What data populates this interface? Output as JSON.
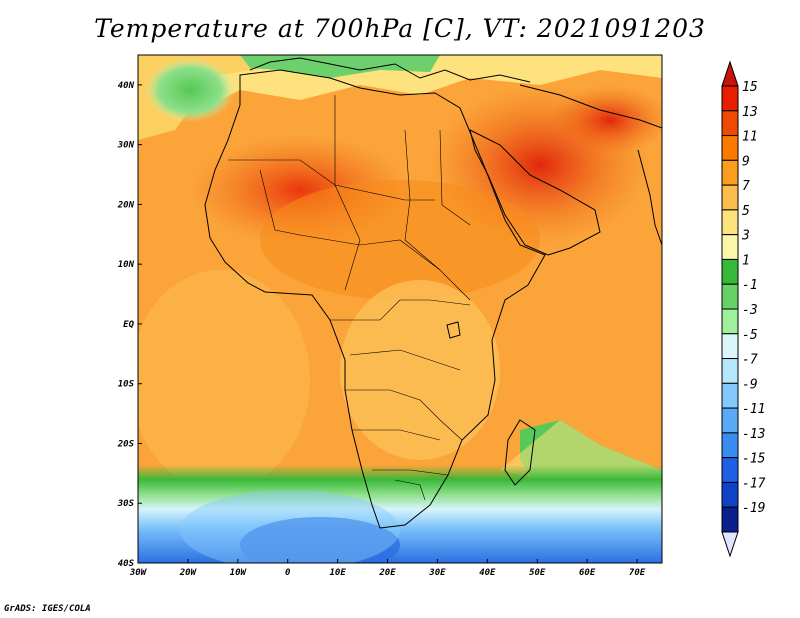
{
  "title": "Temperature at 700hPa [C], VT: 2021091203",
  "credit": "GrADS: IGES/COLA",
  "map": {
    "lon_range": [
      -30,
      75
    ],
    "lat_range": [
      -40,
      45
    ],
    "lon_ticks": [
      "30W",
      "20W",
      "10W",
      "0",
      "10E",
      "20E",
      "30E",
      "40E",
      "50E",
      "60E",
      "70E"
    ],
    "lat_ticks": [
      "40N",
      "30N",
      "20N",
      "10N",
      "EQ",
      "10S",
      "20S",
      "30S",
      "40S"
    ]
  },
  "colorbar": {
    "labels": [
      "15",
      "13",
      "11",
      "9",
      "7",
      "5",
      "3",
      "1",
      "-1",
      "-3",
      "-5",
      "-7",
      "-9",
      "-11",
      "-13",
      "-15",
      "-17",
      "-19"
    ],
    "colors": [
      "#e81e00",
      "#f04a00",
      "#fa7a00",
      "#fb9e1e",
      "#fbbd4c",
      "#fde27e",
      "#fcf6a8",
      "#38b838",
      "#66d266",
      "#9ff09a",
      "#daf6fa",
      "#b4e6fe",
      "#84c8fe",
      "#5aaaf8",
      "#3a8cf0",
      "#2060e6",
      "#1042c8",
      "#0a1e8c"
    ],
    "top_color": "#c8140a",
    "bottom_color": "#e0e4ff"
  }
}
